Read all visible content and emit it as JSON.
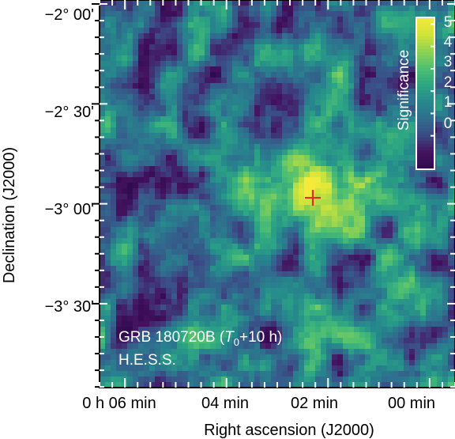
{
  "chart_data": {
    "type": "heatmap",
    "title": "",
    "xlabel": "Right ascension (J2000)",
    "ylabel": "Declination (J2000)",
    "x_tick_labels": [
      "0 h 06 min",
      "04 min",
      "02 min",
      "00 min"
    ],
    "x_tick_values_min": [
      6,
      4,
      2,
      0
    ],
    "y_tick_labels": [
      "−2° 00'",
      "−2° 30'",
      "−3° 00'",
      "−3° 30'"
    ],
    "y_tick_values_deg": [
      -2.0,
      -2.5,
      -3.0,
      -3.5
    ],
    "ra_range_min": [
      6.5,
      -0.5
    ],
    "dec_range_deg": [
      -1.98,
      -3.92
    ],
    "colorbar": {
      "label": "Significance",
      "range": [
        -1.5,
        5.3
      ],
      "tick_values": [
        0,
        1,
        2,
        3,
        4,
        5
      ],
      "tick_labels": [
        "0",
        "1",
        "2",
        "3",
        "4",
        "5"
      ],
      "colors": [
        "#2e0a4e",
        "#44125f",
        "#3c4a85",
        "#2f6d8e",
        "#26898c",
        "#2da683",
        "#4fbf72",
        "#8fd353",
        "#d2e43a",
        "#f4ea3a"
      ]
    },
    "source_marker": {
      "symbol": "+",
      "color": "#e8262a",
      "ra_min": 2.3,
      "dec_deg": -2.97
    },
    "hotspot": {
      "ra_min": 2.4,
      "dec_deg": -2.97,
      "peak_significance": 5.2
    },
    "annotations": [
      "GRB 180720B (",
      "T",
      "0",
      "+10 h)",
      "H.E.S.S."
    ]
  }
}
